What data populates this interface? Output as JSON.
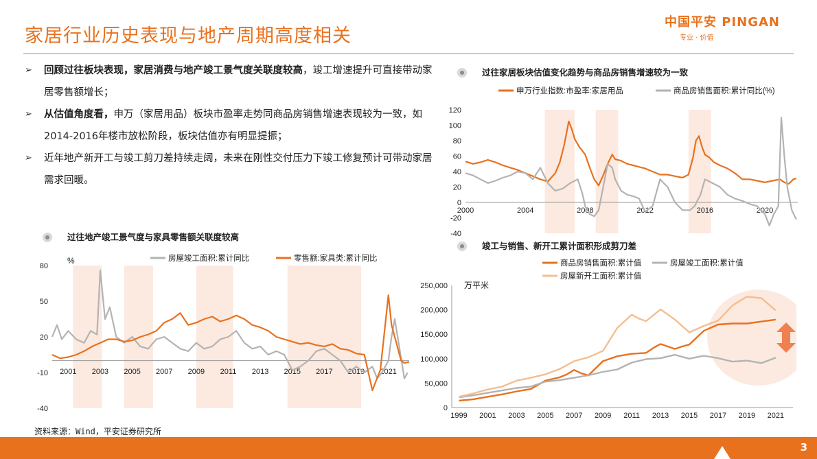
{
  "title": "家居行业历史表现与地产周期高度相关",
  "logo": {
    "brand": "中国平安 PINGAN",
    "slogan": "专业 · 价值"
  },
  "bullets": [
    {
      "bold": "回顾过往板块表现，家居消费与地产竣工景气度关联度较高",
      "text": "，竣工增速提升可直接带动家居零售额增长；"
    },
    {
      "bold": "从估值角度看，",
      "text": "申万（家居用品）板块市盈率走势同商品房销售增速表现较为一致，如2014-2016年楼市放松阶段，板块估值亦有明显提振；"
    },
    {
      "bold": "",
      "text": "近年地产新开工与竣工剪刀差持续走阔，未来在刚性交付压力下竣工修复预计可带动家居需求回暖。"
    }
  ],
  "source": "资料来源：Wind，平安证券研究所",
  "page_number": "3",
  "colors": {
    "orange": "#e8711e",
    "gray": "#b3b3b3",
    "light_orange": "#f5bd8f",
    "shade": "#fbe5da"
  },
  "chart_data": [
    {
      "id": "valuation",
      "type": "line",
      "title": "过往家居板块估值变化趋势与商品房销售增速较为一致",
      "x_ticks": [
        "2000",
        "2004",
        "2008",
        "2012",
        "2016",
        "2020"
      ],
      "xlim": [
        2000,
        2022.2
      ],
      "ylim": [
        -40,
        120
      ],
      "y_ticks": [
        -40,
        -20,
        0,
        20,
        40,
        60,
        80,
        100,
        120
      ],
      "shaded_ranges": [
        [
          2005.3,
          2007.3
        ],
        [
          2008.7,
          2010.2
        ],
        [
          2014.9,
          2016.4
        ]
      ],
      "series": [
        {
          "name": "申万行业指数:市盈率:家居用品",
          "color": "#e8711e",
          "x": [
            2000,
            2000.5,
            2001,
            2001.5,
            2002,
            2002.5,
            2003,
            2003.5,
            2004,
            2004.5,
            2005,
            2005.5,
            2006,
            2006.3,
            2006.6,
            2006.9,
            2007.1,
            2007.3,
            2007.6,
            2008,
            2008.3,
            2008.6,
            2008.9,
            2009.2,
            2009.5,
            2009.8,
            2010,
            2010.4,
            2010.8,
            2011.2,
            2011.6,
            2012,
            2012.5,
            2013,
            2013.5,
            2014,
            2014.5,
            2014.9,
            2015.2,
            2015.4,
            2015.6,
            2015.8,
            2016,
            2016.3,
            2016.6,
            2017,
            2017.5,
            2018,
            2018.5,
            2019,
            2019.5,
            2020,
            2020.5,
            2021,
            2021.3,
            2021.6,
            2021.9,
            2022.1
          ],
          "y": [
            53,
            50,
            52,
            55,
            52,
            48,
            45,
            42,
            38,
            34,
            30,
            27,
            38,
            52,
            75,
            105,
            95,
            82,
            72,
            62,
            45,
            30,
            22,
            35,
            50,
            62,
            56,
            54,
            50,
            48,
            46,
            44,
            40,
            36,
            36,
            34,
            32,
            36,
            58,
            80,
            86,
            72,
            62,
            58,
            52,
            48,
            44,
            38,
            30,
            30,
            28,
            26,
            28,
            30,
            26,
            24,
            30,
            31
          ]
        },
        {
          "name": "商品房销售面积:累计同比(%)",
          "color": "#b3b3b3",
          "x": [
            2000,
            2000.5,
            2001,
            2001.5,
            2002,
            2002.5,
            2003,
            2003.5,
            2004,
            2004.5,
            2005,
            2005.5,
            2006,
            2006.5,
            2007,
            2007.5,
            2007.8,
            2008,
            2008.3,
            2008.6,
            2008.9,
            2009.2,
            2009.5,
            2009.8,
            2010,
            2010.4,
            2010.8,
            2011.2,
            2011.6,
            2012,
            2012.5,
            2013,
            2013.5,
            2014,
            2014.5,
            2015,
            2015.3,
            2015.7,
            2016,
            2016.5,
            2017,
            2017.5,
            2018,
            2018.5,
            2019,
            2019.5,
            2020,
            2020.3,
            2020.6,
            2020.9,
            2021.1,
            2021.3,
            2021.5,
            2021.8,
            2022.1
          ],
          "y": [
            38,
            35,
            30,
            25,
            28,
            32,
            35,
            40,
            38,
            30,
            45,
            25,
            15,
            18,
            25,
            30,
            12,
            -5,
            -15,
            -18,
            -10,
            20,
            50,
            45,
            30,
            15,
            10,
            8,
            5,
            -12,
            -5,
            30,
            20,
            0,
            -10,
            -10,
            -5,
            10,
            30,
            25,
            20,
            10,
            5,
            2,
            -2,
            -5,
            -15,
            -30,
            -15,
            -5,
            110,
            60,
            20,
            -10,
            -22
          ]
        }
      ]
    },
    {
      "id": "completion_vs_retail",
      "type": "line",
      "title": "过往地产竣工景气度与家具零售额关联度较高",
      "y_unit": "%",
      "x_ticks": [
        "2001",
        "2003",
        "2005",
        "2007",
        "2009",
        "2011",
        "2013",
        "2015",
        "2017",
        "2019",
        "2021"
      ],
      "xlim": [
        2000,
        2022.3
      ],
      "ylim": [
        -40,
        80
      ],
      "y_ticks": [
        -40,
        -10,
        20,
        50,
        80
      ],
      "y_tick_labels": [
        "-40",
        "-10",
        "20",
        "50",
        "80"
      ],
      "shaded_ranges": [
        [
          2001.3,
          2003.1
        ],
        [
          2004.5,
          2006.3
        ],
        [
          2009.0,
          2011.3
        ],
        [
          2014.7,
          2019.3
        ]
      ],
      "series": [
        {
          "name": "房屋竣工面积:累计同比",
          "color": "#b3b3b3",
          "x": [
            2000,
            2000.3,
            2000.6,
            2001,
            2001.5,
            2002,
            2002.4,
            2002.8,
            2003,
            2003.3,
            2003.6,
            2004,
            2004.5,
            2005,
            2005.5,
            2006,
            2006.5,
            2007,
            2007.5,
            2008,
            2008.5,
            2009,
            2009.5,
            2010,
            2010.5,
            2011,
            2011.5,
            2012,
            2012.5,
            2013,
            2013.5,
            2014,
            2014.5,
            2015,
            2015.5,
            2016,
            2016.5,
            2017,
            2017.5,
            2018,
            2018.5,
            2019,
            2019.5,
            2020,
            2020.3,
            2020.6,
            2021,
            2021.2,
            2021.4,
            2021.7,
            2022,
            2022.2
          ],
          "y": [
            20,
            30,
            18,
            25,
            18,
            15,
            25,
            22,
            76,
            35,
            45,
            20,
            15,
            20,
            12,
            10,
            18,
            20,
            15,
            10,
            8,
            15,
            10,
            12,
            18,
            20,
            25,
            15,
            10,
            12,
            5,
            8,
            5,
            -8,
            -5,
            0,
            8,
            10,
            5,
            0,
            -10,
            -5,
            -10,
            -5,
            -15,
            -10,
            0,
            20,
            35,
            10,
            -15,
            -10
          ]
        },
        {
          "name": "零售额:家具类:累计同比",
          "color": "#e8711e",
          "x": [
            2000,
            2000.5,
            2001,
            2001.5,
            2002,
            2002.5,
            2003,
            2003.5,
            2004,
            2004.5,
            2005,
            2005.5,
            2006,
            2006.5,
            2007,
            2007.5,
            2008,
            2008.5,
            2009,
            2009.5,
            2010,
            2010.5,
            2011,
            2011.5,
            2012,
            2012.5,
            2013,
            2013.5,
            2014,
            2014.5,
            2015,
            2015.5,
            2016,
            2016.5,
            2017,
            2017.5,
            2018,
            2018.5,
            2019,
            2019.5,
            2020,
            2020.2,
            2020.5,
            2021,
            2021.2,
            2021.5,
            2021.8,
            2022,
            2022.3
          ],
          "y": [
            5,
            2,
            3,
            5,
            8,
            12,
            15,
            18,
            18,
            16,
            17,
            20,
            22,
            25,
            32,
            35,
            40,
            30,
            32,
            35,
            37,
            33,
            35,
            38,
            35,
            30,
            28,
            25,
            20,
            18,
            16,
            14,
            15,
            13,
            12,
            14,
            10,
            9,
            6,
            5,
            -25,
            -18,
            -8,
            55,
            30,
            15,
            0,
            -2,
            -1
          ]
        }
      ]
    },
    {
      "id": "scissors_gap",
      "type": "line",
      "title": "竣工与销售、新开工累计面积形成剪刀差",
      "y_unit": "万平米",
      "x_ticks": [
        "1999",
        "2001",
        "2003",
        "2005",
        "2007",
        "2009",
        "2011",
        "2013",
        "2015",
        "2017",
        "2019",
        "2021"
      ],
      "xlim": [
        1998.5,
        2022.2
      ],
      "ylim": [
        0,
        250000
      ],
      "y_ticks": [
        0,
        50000,
        100000,
        150000,
        200000,
        250000
      ],
      "y_tick_labels": [
        "0",
        "50,000",
        "100,000",
        "150,000",
        "200,000",
        "250,000"
      ],
      "series": [
        {
          "name": "商品房销售面积:累计值",
          "color": "#e8711e",
          "x": [
            1999,
            2000,
            2001,
            2002,
            2003,
            2004,
            2005,
            2006,
            2006.5,
            2007,
            2007.5,
            2008,
            2009,
            2010,
            2011,
            2012,
            2012.5,
            2013,
            2014,
            2014.5,
            2015,
            2016,
            2017,
            2018,
            2019,
            2020,
            2021
          ],
          "y": [
            14000,
            17000,
            22000,
            27000,
            33000,
            38000,
            55000,
            62000,
            68000,
            77000,
            70000,
            66000,
            95000,
            105000,
            110000,
            112000,
            122000,
            130000,
            120000,
            125000,
            129000,
            157000,
            170000,
            172000,
            172000,
            176000,
            180000
          ]
        },
        {
          "name": "房屋竣工面积:累计值",
          "color": "#b3b3b3",
          "x": [
            1999,
            2000,
            2001,
            2002,
            2003,
            2004,
            2005,
            2006,
            2007,
            2008,
            2009,
            2010,
            2011,
            2012,
            2013,
            2014,
            2015,
            2016,
            2017,
            2018,
            2019,
            2020,
            2021
          ],
          "y": [
            21000,
            25000,
            30000,
            35000,
            40000,
            43000,
            53000,
            56000,
            61000,
            66000,
            73000,
            78000,
            92000,
            99000,
            101000,
            108000,
            100000,
            106000,
            101000,
            94000,
            96000,
            91000,
            102000
          ]
        },
        {
          "name": "房屋新开工面积:累计值",
          "color": "#f5bd8f",
          "x": [
            1999,
            2000,
            2001,
            2002,
            2003,
            2004,
            2005,
            2006,
            2007,
            2008,
            2009,
            2010,
            2011,
            2011.5,
            2012,
            2013,
            2014,
            2015,
            2016,
            2017,
            2018,
            2019,
            2020,
            2021
          ],
          "y": [
            22000,
            29000,
            37000,
            43000,
            55000,
            61000,
            68000,
            79000,
            95000,
            103000,
            116000,
            163000,
            190000,
            182000,
            177000,
            201000,
            180000,
            154000,
            167000,
            178000,
            209000,
            227000,
            224000,
            199000
          ]
        }
      ]
    }
  ]
}
